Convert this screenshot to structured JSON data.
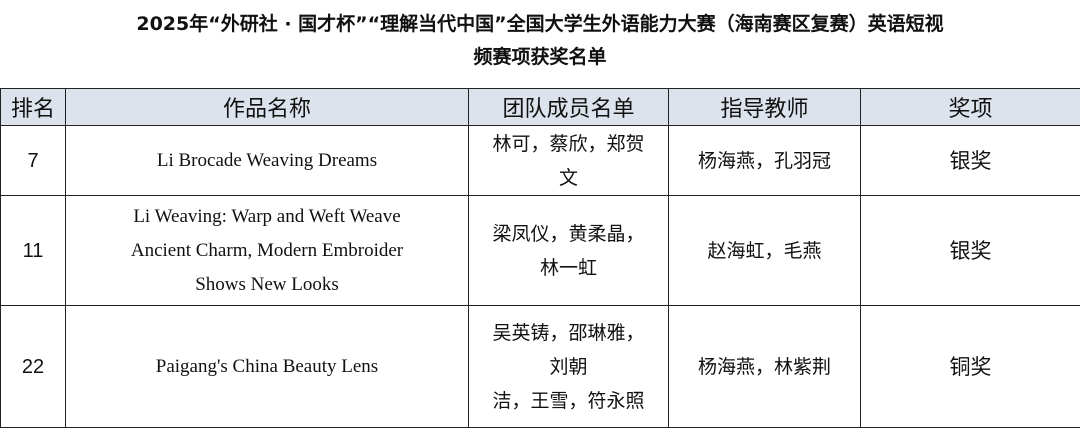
{
  "title": [
    "2025年“外研社 · 国才杯”“理解当代中国”全国大学生外语能力大赛（海南赛区复赛）英语短视",
    "频赛项获奖名单"
  ],
  "headers": [
    "排名",
    "作品名称",
    "团队成员名单",
    "指导教师",
    "奖项"
  ],
  "header_bg": "#dde3ec",
  "rows": [
    {
      "rank": "7",
      "work": [
        "Li Brocade Weaving Dreams"
      ],
      "members": [
        "林可，蔡欣，郑贺",
        "文"
      ],
      "advisors": "杨海燕，孔羽冠",
      "award": "银奖"
    },
    {
      "rank": "11",
      "work": [
        "Li Weaving: Warp and Weft Weave",
        "Ancient Charm, Modern Embroider",
        "Shows New Looks"
      ],
      "members": [
        "梁凤仪，黄柔晶，",
        "林一虹"
      ],
      "advisors": "赵海虹，毛燕",
      "award": "银奖"
    },
    {
      "rank": "22",
      "work": [
        "Paigang's China Beauty Lens"
      ],
      "members": [
        "吴英铸，邵琳雅，",
        "刘朝",
        "洁，王雪，符永照"
      ],
      "advisors": "杨海燕，林紫荆",
      "award": "铜奖"
    }
  ]
}
